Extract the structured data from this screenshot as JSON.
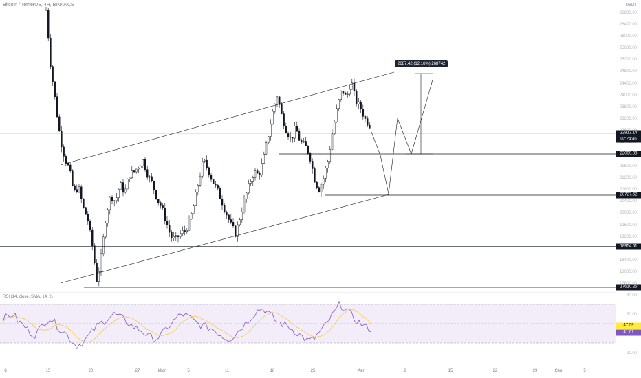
{
  "header": {
    "symbol_title": "Bitcoin / TetherUS, 4H, BINANCE",
    "currency": "USDT"
  },
  "price_axis": {
    "ticks": [
      "26800.00",
      "26400.00",
      "26000.00",
      "25600.00",
      "25200.00",
      "24800.00",
      "24400.00",
      "24000.00",
      "23600.00",
      "23200.00",
      "22800.00",
      "22400.00",
      "22000.00",
      "21600.00",
      "21200.00",
      "20800.00",
      "20400.00",
      "20000.00",
      "19600.00",
      "19200.00",
      "18800.00",
      "18400.00",
      "18000.00",
      "17600.00"
    ]
  },
  "price_tags": {
    "current_price": "22813.14",
    "countdown": "02:24:46",
    "level_22099": "22099.08",
    "level_20727": "20727.62",
    "level_18954": "18954.51",
    "level_17610": "17610.26"
  },
  "measure": {
    "label": "2687.42 (12.16%) 268742"
  },
  "rsi": {
    "label": "RSI (14, close, SMA, 14, 2)",
    "axis_ticks": [
      "80.00",
      "60.00",
      "20.00"
    ],
    "value_yellow": "47.59",
    "value_purple": "41.01"
  },
  "time_axis": {
    "ticks": [
      "8",
      "15",
      "20",
      "27",
      "Июл",
      "5",
      "11",
      "18",
      "25",
      "Авг",
      "8",
      "15",
      "22",
      "29",
      "Сен",
      "5"
    ]
  },
  "colors": {
    "candle": "#131722",
    "rsi_line": "#7e57c2",
    "rsi_ma": "#f7c948",
    "rsi_band": "#ede7f6",
    "grid": "#f0f3fa"
  },
  "chart_data": {
    "type": "candlestick",
    "title": "Bitcoin / TetherUS, 4H, BINANCE",
    "ylim": [
      17400,
      27000
    ],
    "horizontal_levels": [
      22813.14,
      22099.08,
      20727.62,
      18954.51,
      17610.26
    ],
    "close_path": [
      26900,
      25000,
      23800,
      22600,
      21900,
      21500,
      20700,
      20900,
      20200,
      19800,
      18900,
      17700,
      18600,
      20000,
      20600,
      20400,
      21000,
      20700,
      21300,
      21400,
      21600,
      21800,
      21300,
      21000,
      20500,
      20200,
      19700,
      19200,
      19100,
      19300,
      19400,
      19700,
      20300,
      21100,
      21800,
      21500,
      21100,
      20800,
      20400,
      20000,
      19600,
      19300,
      19900,
      20500,
      21000,
      21400,
      21300,
      21800,
      22600,
      23400,
      24000,
      23300,
      22800,
      22500,
      22900,
      22400,
      22300,
      22000,
      21200,
      20800,
      21200,
      21800,
      22800,
      23600,
      24200,
      23900,
      24500,
      23800,
      23600,
      23200,
      23000
    ],
    "rsi_values": [
      55,
      58,
      60,
      52,
      48,
      42,
      38,
      44,
      52,
      56,
      50,
      44,
      40,
      33,
      27,
      30,
      35,
      42,
      48,
      52,
      56,
      60,
      58,
      54,
      50,
      46,
      44,
      40,
      36,
      34,
      38,
      44,
      50,
      56,
      60,
      58,
      54,
      50,
      48,
      46,
      44,
      40,
      36,
      34,
      38,
      44,
      50,
      56,
      62,
      66,
      64,
      58,
      52,
      50,
      48,
      44,
      40,
      36,
      32,
      34,
      40,
      46,
      54,
      62,
      70,
      66,
      60,
      54,
      50,
      46,
      44
    ]
  }
}
